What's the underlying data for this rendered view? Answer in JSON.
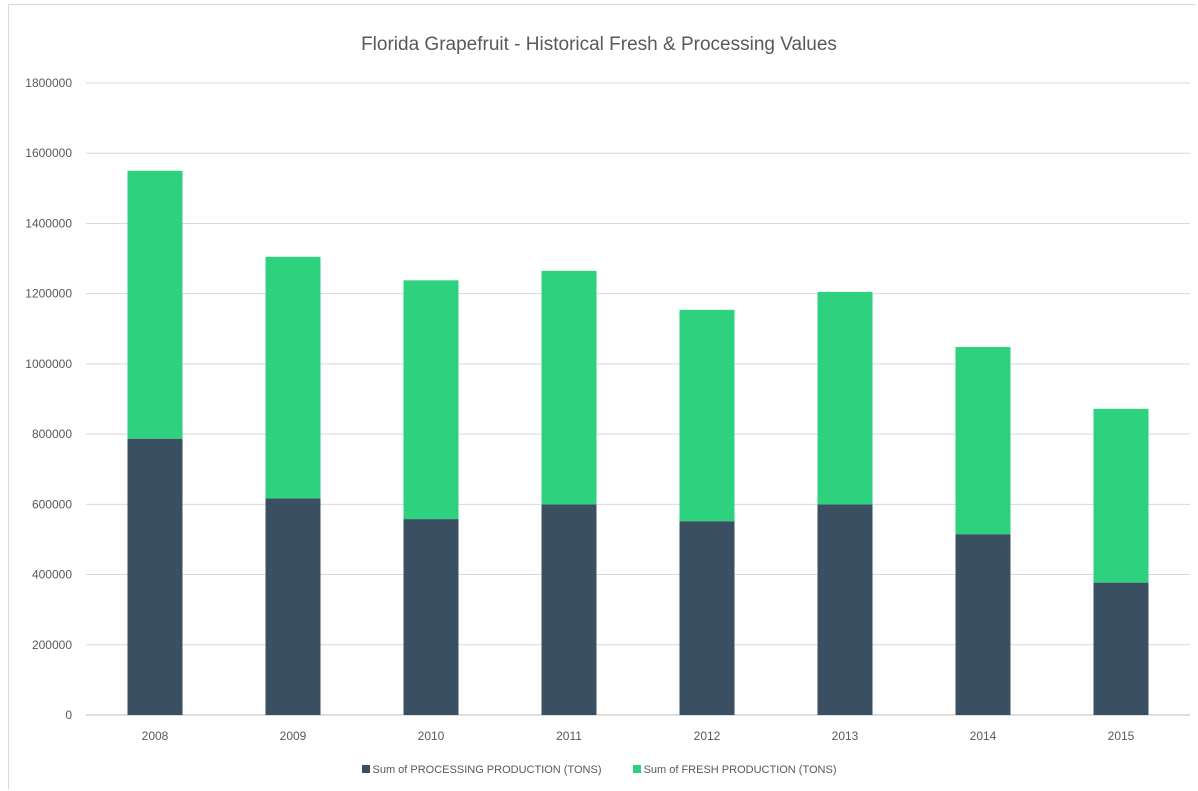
{
  "chart_data": {
    "type": "bar",
    "stacked": true,
    "title": "Florida Grapefruit -  Historical Fresh & Processing Values",
    "xlabel": "",
    "ylabel": "",
    "categories": [
      "2008",
      "2009",
      "2010",
      "2011",
      "2012",
      "2013",
      "2014",
      "2015"
    ],
    "ylim": [
      0,
      1800000
    ],
    "yticks": [
      "0",
      "200000",
      "400000",
      "600000",
      "800000",
      "1000000",
      "1200000",
      "1400000",
      "1600000",
      "1800000"
    ],
    "grid": true,
    "legend_position": "bottom",
    "series": [
      {
        "name": "Sum of PROCESSING PRODUCTION (TONS)",
        "color": "#3a4f62",
        "values": [
          787000,
          617000,
          558000,
          600000,
          552000,
          600000,
          515000,
          377000
        ]
      },
      {
        "name": "Sum of FRESH PRODUCTION (TONS)",
        "color": "#2ed27e",
        "values": [
          763000,
          688000,
          680000,
          665000,
          602000,
          605000,
          533000,
          495000
        ]
      }
    ]
  }
}
